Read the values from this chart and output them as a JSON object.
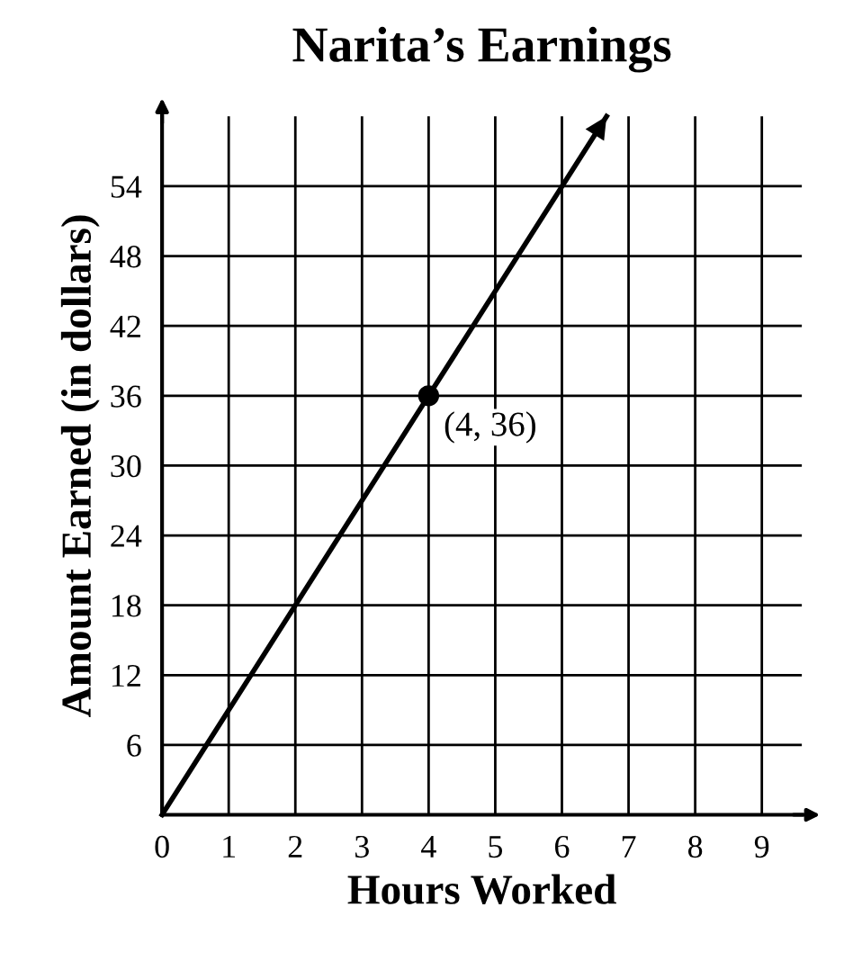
{
  "chart_data": {
    "type": "line",
    "title": "Narita’s Earnings",
    "xlabel": "Hours Worked",
    "ylabel": "Amount Earned (in dollars)",
    "series": [
      {
        "color": "#000000",
        "x": [
          0,
          4,
          6.67
        ],
        "values": [
          0,
          36,
          60
        ],
        "marker": "none"
      },
      {
        "type": "scatter",
        "color": "#000000",
        "x": [
          4
        ],
        "values": [
          36
        ],
        "marker": "circle"
      }
    ],
    "xlim": [
      0,
      9.6
    ],
    "ylim": [
      0,
      60
    ],
    "xticks": [
      0,
      1,
      2,
      3,
      4,
      5,
      6,
      7,
      8,
      9
    ],
    "yticks": [
      6,
      12,
      18,
      24,
      30,
      36,
      42,
      48,
      54
    ],
    "grid": true,
    "legend": false,
    "annotations": [
      {
        "text": "(4, 36)",
        "x": 4,
        "y": 36
      }
    ]
  }
}
